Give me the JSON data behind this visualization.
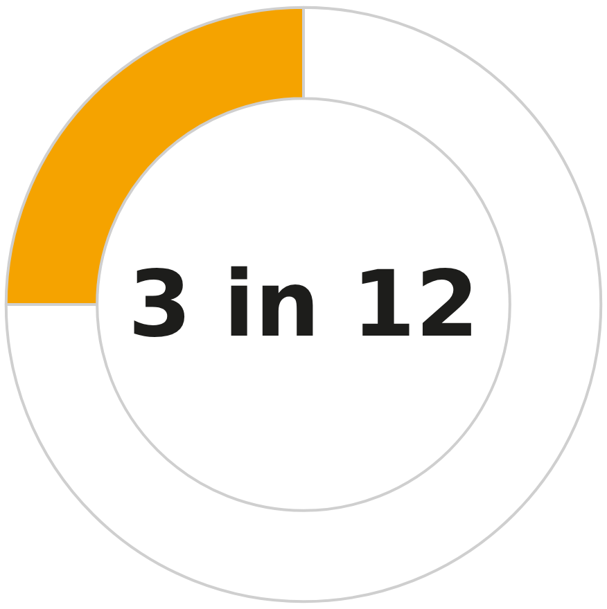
{
  "chart_data": {
    "type": "donut",
    "title": "3 in 12",
    "categories": [
      null,
      null
    ],
    "values": [
      25,
      75
    ],
    "colors": [
      "#f5a300",
      "#ffffff"
    ]
  }
}
